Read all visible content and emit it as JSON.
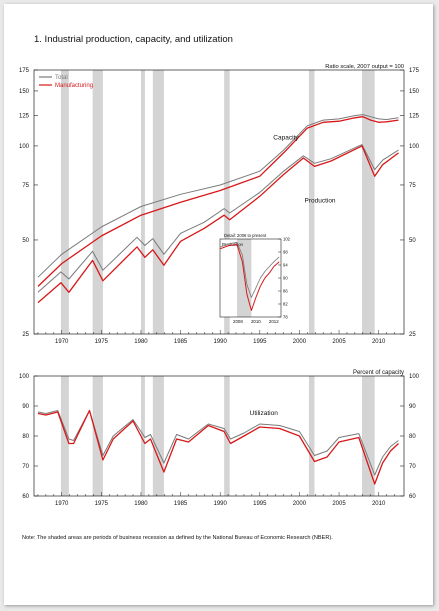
{
  "figure": {
    "title": "1.  Industrial production, capacity, and utilization",
    "note": "Note: The shaded areas are periods of business recession as defined by the National Bureau of Economic Research (NBER)."
  },
  "colors": {
    "total": "#7a7a7a",
    "manufacturing": "#d81818",
    "recession": "#d4d4d4",
    "axis": "#222222"
  },
  "recessions": [
    [
      1969.9,
      1970.9
    ],
    [
      1973.9,
      1975.2
    ],
    [
      1980.0,
      1980.5
    ],
    [
      1981.5,
      1982.9
    ],
    [
      1990.5,
      1991.2
    ],
    [
      2001.2,
      2001.9
    ],
    [
      2007.9,
      2009.5
    ]
  ],
  "chart_data": [
    {
      "type": "line",
      "panel": "top",
      "scale_label": "Ratio scale, 2007 output = 100",
      "y_scale": "log",
      "ylim": [
        25,
        175
      ],
      "xlim": [
        1966.5,
        2013.2
      ],
      "x_ticks": [
        1970,
        1975,
        1980,
        1985,
        1990,
        1995,
        2000,
        2005,
        2010
      ],
      "y_ticks": [
        25,
        50,
        75,
        100,
        125,
        150,
        175
      ],
      "legend": [
        "Total",
        "Manufacturing"
      ],
      "legend_position": "top-left",
      "annotations": [
        {
          "text": "Capacity",
          "x": 1998.3,
          "y": 105
        },
        {
          "text": "Production",
          "x": 2002.6,
          "y": 66
        }
      ],
      "series": [
        {
          "name": "Total",
          "kind": "capacity",
          "x": [
            1967,
            1970,
            1975,
            1980,
            1985,
            1990,
            1995,
            1998,
            2001,
            2003,
            2005,
            2007,
            2008,
            2009,
            2010,
            2011,
            2012.5
          ],
          "y": [
            38,
            45,
            55,
            64,
            70,
            75,
            83,
            97,
            116,
            121,
            122,
            125,
            126,
            124,
            122,
            121.5,
            123
          ]
        },
        {
          "name": "Manufacturing",
          "kind": "capacity",
          "x": [
            1967,
            1970,
            1975,
            1980,
            1985,
            1990,
            1995,
            1998,
            2001,
            2003,
            2005,
            2007,
            2008,
            2009,
            2010,
            2011,
            2012.5
          ],
          "y": [
            35.5,
            42,
            51.5,
            60,
            66,
            72,
            80,
            95,
            114,
            119,
            120,
            123,
            124,
            121,
            119,
            119.5,
            121
          ]
        },
        {
          "name": "Total",
          "kind": "production",
          "x": [
            1967,
            1969.9,
            1970.9,
            1973.9,
            1975.2,
            1979.5,
            1980.5,
            1981.5,
            1982.9,
            1985,
            1988,
            1990.5,
            1991.2,
            1995,
            1998,
            2000.5,
            2001.9,
            2004,
            2007.9,
            2009.5,
            2010.5,
            2012.5
          ],
          "y": [
            34,
            39.5,
            37.5,
            46,
            40,
            51,
            48,
            50.5,
            45,
            52.5,
            57,
            63,
            61,
            71,
            83,
            93,
            88,
            91,
            101,
            84,
            90,
            97
          ]
        },
        {
          "name": "Manufacturing",
          "kind": "production",
          "x": [
            1967,
            1969.9,
            1970.9,
            1973.9,
            1975.2,
            1979.5,
            1980.5,
            1981.5,
            1982.9,
            1985,
            1988,
            1990.5,
            1991.2,
            1995,
            1998,
            2000.5,
            2001.9,
            2004,
            2007.9,
            2009.5,
            2010.5,
            2012.5
          ],
          "y": [
            31.5,
            36.5,
            34,
            43,
            37,
            47.5,
            44,
            46.5,
            41.5,
            49.5,
            54.5,
            60,
            58,
            69,
            81,
            91.5,
            86,
            89.5,
            100,
            80,
            87,
            95
          ]
        }
      ]
    },
    {
      "type": "line",
      "panel": "inset",
      "title": "Detail: 2006 to present",
      "ylabel": "Production",
      "ylim": [
        78,
        102
      ],
      "x_ticks": [
        2008,
        2010,
        2012
      ],
      "y_ticks": [
        78,
        82,
        86,
        90,
        94,
        98,
        102
      ],
      "series": [
        {
          "name": "Total",
          "x": [
            2006,
            2007,
            2007.9,
            2008.5,
            2009.0,
            2009.5,
            2010,
            2010.5,
            2011,
            2011.5,
            2012,
            2012.6
          ],
          "y": [
            99.5,
            100.5,
            101,
            97,
            88,
            84,
            87,
            90,
            92,
            93.5,
            95,
            96.5
          ]
        },
        {
          "name": "Manufacturing",
          "x": [
            2006,
            2007,
            2007.9,
            2008.5,
            2009.0,
            2009.5,
            2010,
            2010.5,
            2011,
            2011.5,
            2012,
            2012.6
          ],
          "y": [
            99,
            100,
            100.3,
            95,
            85,
            80,
            84,
            87.5,
            90,
            91.5,
            93.5,
            95
          ]
        }
      ]
    },
    {
      "type": "line",
      "panel": "bottom",
      "ylabel": "Percent of capacity",
      "ylim": [
        60,
        100
      ],
      "xlim": [
        1966.5,
        2013.2
      ],
      "x_ticks": [
        1970,
        1975,
        1980,
        1985,
        1990,
        1995,
        2000,
        2005,
        2010
      ],
      "y_ticks": [
        60,
        70,
        80,
        90,
        100
      ],
      "annotations": [
        {
          "text": "Utilization",
          "x": 1995.5,
          "y": 87
        }
      ],
      "series": [
        {
          "name": "Total",
          "x": [
            1967,
            1968,
            1969.5,
            1970.9,
            1971.5,
            1973.5,
            1975.2,
            1976.5,
            1979,
            1980.5,
            1981.2,
            1982.9,
            1984.5,
            1986,
            1988.5,
            1990.5,
            1991.3,
            1993,
            1995,
            1997.5,
            2000,
            2001.9,
            2003.5,
            2005,
            2007.5,
            2009.5,
            2010.5,
            2011.5,
            2012.5
          ],
          "y": [
            88,
            87.5,
            88.5,
            79,
            78.5,
            88.5,
            73.5,
            80,
            85.5,
            79.5,
            80.5,
            71,
            80.5,
            79,
            84,
            82.5,
            79,
            81,
            84,
            83.5,
            81.5,
            73.5,
            75,
            79.5,
            80.8,
            67,
            73,
            76.5,
            78.5
          ]
        },
        {
          "name": "Manufacturing",
          "x": [
            1967,
            1968,
            1969.5,
            1970.9,
            1971.5,
            1973.5,
            1975.2,
            1976.5,
            1979,
            1980.5,
            1981.2,
            1982.9,
            1984.5,
            1986,
            1988.5,
            1990.5,
            1991.3,
            1993,
            1995,
            1997.5,
            2000,
            2001.9,
            2003.5,
            2005,
            2007.5,
            2009.5,
            2010.5,
            2011.5,
            2012.5
          ],
          "y": [
            87.5,
            87,
            88,
            77.5,
            77.5,
            88.5,
            72,
            79,
            85,
            77.5,
            79,
            68,
            79,
            78,
            83.5,
            81.5,
            77.5,
            80,
            83,
            82.5,
            80,
            71.5,
            73,
            78,
            79.5,
            64,
            71,
            75,
            77.5
          ]
        }
      ]
    }
  ]
}
